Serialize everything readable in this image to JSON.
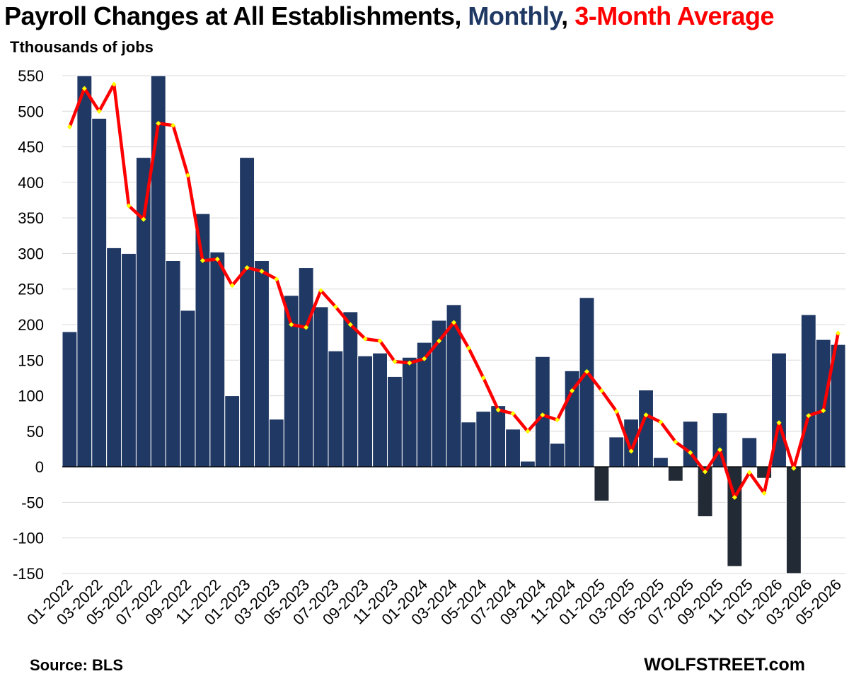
{
  "header": {
    "title_part1": "Payroll Changes at All Establishments, ",
    "title_part2": "Monthly",
    "title_part3": ", ",
    "title_part4": "3-Month Average",
    "unit_label": "Tthousands of jobs"
  },
  "footer": {
    "source": "Source: BLS",
    "brand": "WOLFSTREET.com"
  },
  "chart_data": {
    "type": "bar",
    "ylim": [
      -150,
      550
    ],
    "yticks": [
      550,
      500,
      450,
      400,
      350,
      300,
      250,
      200,
      150,
      100,
      50,
      0,
      -50,
      -100,
      -150
    ],
    "grid": true,
    "colors": {
      "bar_positive": "#203864",
      "bar_negative": "#222a35",
      "line": "#ff0000",
      "marker": "#ffff00",
      "title_monthly": "#1f3864",
      "title_average": "#ff0000"
    },
    "x_tick_labels": [
      "01-2022",
      "03-2022",
      "05-2022",
      "07-2022",
      "09-2022",
      "11-2022",
      "01-2023",
      "03-2023",
      "05-2023",
      "07-2023",
      "09-2023",
      "11-2023",
      "01-2024",
      "03-2024",
      "05-2024",
      "07-2024",
      "09-2024",
      "11-2024",
      "01-2025",
      "03-2025",
      "05-2025",
      "07-2025",
      "09-2025",
      "11-2025",
      "01-2026",
      "03-2026",
      "05-2026"
    ],
    "series": [
      {
        "name": "Monthly",
        "values": [
          190,
          560,
          490,
          308,
          300,
          435,
          568,
          290,
          220,
          356,
          302,
          100,
          435,
          290,
          67,
          241,
          280,
          225,
          163,
          218,
          156,
          160,
          127,
          154,
          175,
          206,
          228,
          63,
          78,
          86,
          53,
          8,
          155,
          33,
          135,
          238,
          -48,
          42,
          67,
          108,
          13,
          -20,
          64,
          -70,
          76,
          -140,
          41,
          -16,
          160,
          -150,
          214,
          179,
          172
        ]
      },
      {
        "name": "3-Month Average",
        "values": [
          478,
          532,
          500,
          538,
          367,
          348,
          483,
          480,
          410,
          290,
          292,
          255,
          280,
          275,
          264,
          200,
          196,
          248,
          225,
          200,
          180,
          177,
          148,
          146,
          152,
          177,
          203,
          167,
          125,
          80,
          75,
          50,
          73,
          66,
          107,
          134,
          107,
          78,
          22,
          73,
          63,
          35,
          20,
          -7,
          24,
          -43,
          -8,
          -37,
          62,
          -2,
          72,
          79,
          188
        ]
      }
    ]
  }
}
